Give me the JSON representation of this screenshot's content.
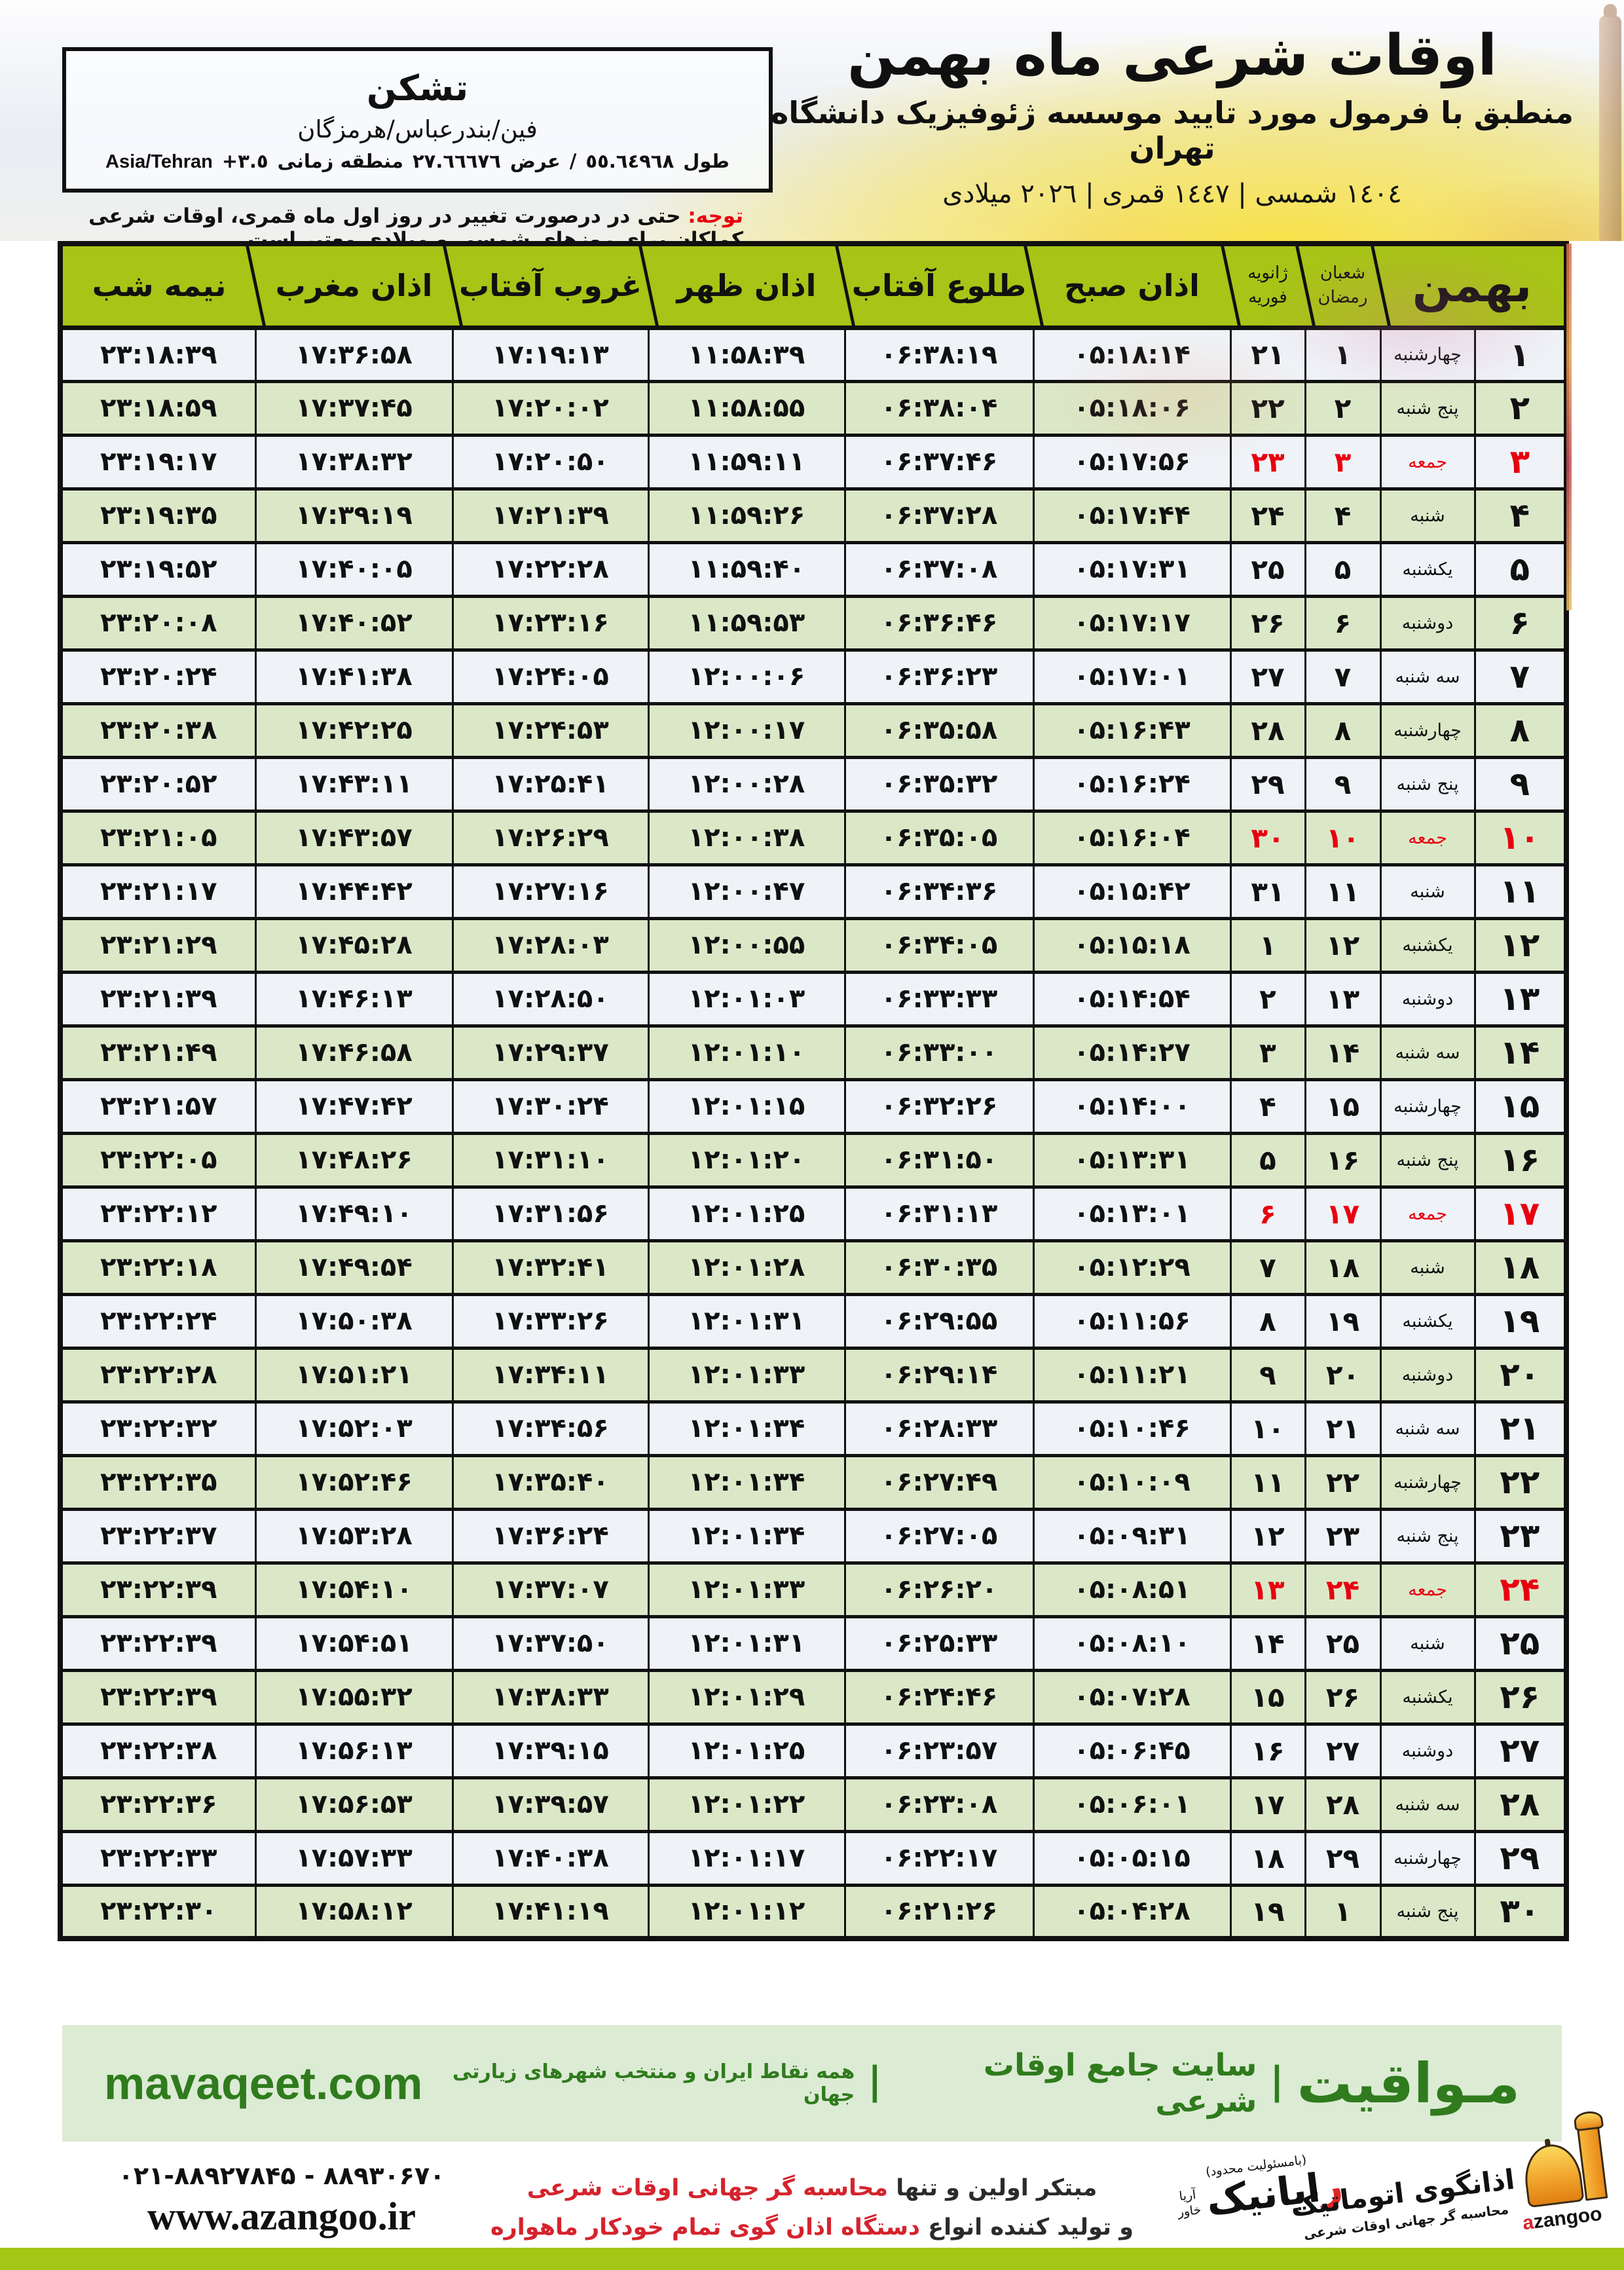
{
  "digit_style": "persian-indic",
  "header": {
    "title": "اوقات شرعی ماه بهمن",
    "subtitle": "منطبق با فرمول مورد تایید موسسه ژئوفیزیک دانشگاه تهران",
    "years_line": "١٤٠٤ شمسی | ١٤٤٧ قمری | ٢٠٢٦ میلادی"
  },
  "location_box": {
    "city": "تشکن",
    "region": "فین/بندرعباس/هرمزگان",
    "longitude_label": "طول",
    "longitude": "٥٥.٦٤٩٦٨",
    "slash": "/",
    "latitude_label": "عرض",
    "latitude": "٢٧.٦٦٦٧٦",
    "timezone_label": "منطقه زمانی",
    "timezone_offset": "+٣.٥",
    "timezone_name": "Asia/Tehran"
  },
  "notice": {
    "label": "توجه:",
    "text": " حتی در درصورت تغییر در روز اول ماه قمری، اوقات شرعی کماکان برای روزهای شمسی و میلادی معتبر است."
  },
  "table": {
    "month_header": "بهمن",
    "lunar_header_top": "شعبان",
    "lunar_header_bottom": "رمضان",
    "gregorian_header_top": "ژانویه",
    "gregorian_header_bottom": "فوریه",
    "time_headers": [
      "اذان صبح",
      "طلوع آفتاب",
      "اذان ظهر",
      "غروب آفتاب",
      "اذان مغرب",
      "نیمه شب"
    ],
    "rows": [
      {
        "day": 1,
        "weekday": "چهارشنبه",
        "lunar": 1,
        "greg": 21,
        "fajr": "05:18:14",
        "sunrise": "06:38:19",
        "dhuhr": "11:58:39",
        "sunset": "17:19:13",
        "maghrib": "17:36:58",
        "midnight": "23:18:39",
        "holiday": false
      },
      {
        "day": 2,
        "weekday": "پنج شنبه",
        "lunar": 2,
        "greg": 22,
        "fajr": "05:18:06",
        "sunrise": "06:38:04",
        "dhuhr": "11:58:55",
        "sunset": "17:20:02",
        "maghrib": "17:37:45",
        "midnight": "23:18:59",
        "holiday": false
      },
      {
        "day": 3,
        "weekday": "جمعه",
        "lunar": 3,
        "greg": 23,
        "fajr": "05:17:56",
        "sunrise": "06:37:46",
        "dhuhr": "11:59:11",
        "sunset": "17:20:50",
        "maghrib": "17:38:32",
        "midnight": "23:19:17",
        "holiday": true
      },
      {
        "day": 4,
        "weekday": "شنبه",
        "lunar": 4,
        "greg": 24,
        "fajr": "05:17:44",
        "sunrise": "06:37:28",
        "dhuhr": "11:59:26",
        "sunset": "17:21:39",
        "maghrib": "17:39:19",
        "midnight": "23:19:35",
        "holiday": false
      },
      {
        "day": 5,
        "weekday": "یکشنبه",
        "lunar": 5,
        "greg": 25,
        "fajr": "05:17:31",
        "sunrise": "06:37:08",
        "dhuhr": "11:59:40",
        "sunset": "17:22:28",
        "maghrib": "17:40:05",
        "midnight": "23:19:52",
        "holiday": false
      },
      {
        "day": 6,
        "weekday": "دوشنبه",
        "lunar": 6,
        "greg": 26,
        "fajr": "05:17:17",
        "sunrise": "06:36:46",
        "dhuhr": "11:59:53",
        "sunset": "17:23:16",
        "maghrib": "17:40:52",
        "midnight": "23:20:08",
        "holiday": false
      },
      {
        "day": 7,
        "weekday": "سه شنبه",
        "lunar": 7,
        "greg": 27,
        "fajr": "05:17:01",
        "sunrise": "06:36:23",
        "dhuhr": "12:00:06",
        "sunset": "17:24:05",
        "maghrib": "17:41:38",
        "midnight": "23:20:24",
        "holiday": false
      },
      {
        "day": 8,
        "weekday": "چهارشنبه",
        "lunar": 8,
        "greg": 28,
        "fajr": "05:16:43",
        "sunrise": "06:35:58",
        "dhuhr": "12:00:17",
        "sunset": "17:24:53",
        "maghrib": "17:42:25",
        "midnight": "23:20:38",
        "holiday": false
      },
      {
        "day": 9,
        "weekday": "پنج شنبه",
        "lunar": 9,
        "greg": 29,
        "fajr": "05:16:24",
        "sunrise": "06:35:32",
        "dhuhr": "12:00:28",
        "sunset": "17:25:41",
        "maghrib": "17:43:11",
        "midnight": "23:20:52",
        "holiday": false
      },
      {
        "day": 10,
        "weekday": "جمعه",
        "lunar": 10,
        "greg": 30,
        "fajr": "05:16:04",
        "sunrise": "06:35:05",
        "dhuhr": "12:00:38",
        "sunset": "17:26:29",
        "maghrib": "17:43:57",
        "midnight": "23:21:05",
        "holiday": true
      },
      {
        "day": 11,
        "weekday": "شنبه",
        "lunar": 11,
        "greg": 31,
        "fajr": "05:15:42",
        "sunrise": "06:34:36",
        "dhuhr": "12:00:47",
        "sunset": "17:27:16",
        "maghrib": "17:44:42",
        "midnight": "23:21:17",
        "holiday": false
      },
      {
        "day": 12,
        "weekday": "یکشنبه",
        "lunar": 12,
        "greg": 1,
        "fajr": "05:15:18",
        "sunrise": "06:34:05",
        "dhuhr": "12:00:55",
        "sunset": "17:28:03",
        "maghrib": "17:45:28",
        "midnight": "23:21:29",
        "holiday": false
      },
      {
        "day": 13,
        "weekday": "دوشنبه",
        "lunar": 13,
        "greg": 2,
        "fajr": "05:14:54",
        "sunrise": "06:33:33",
        "dhuhr": "12:01:03",
        "sunset": "17:28:50",
        "maghrib": "17:46:13",
        "midnight": "23:21:39",
        "holiday": false
      },
      {
        "day": 14,
        "weekday": "سه شنبه",
        "lunar": 14,
        "greg": 3,
        "fajr": "05:14:27",
        "sunrise": "06:33:00",
        "dhuhr": "12:01:10",
        "sunset": "17:29:37",
        "maghrib": "17:46:58",
        "midnight": "23:21:49",
        "holiday": false
      },
      {
        "day": 15,
        "weekday": "چهارشنبه",
        "lunar": 15,
        "greg": 4,
        "fajr": "05:14:00",
        "sunrise": "06:32:26",
        "dhuhr": "12:01:15",
        "sunset": "17:30:24",
        "maghrib": "17:47:42",
        "midnight": "23:21:57",
        "holiday": false
      },
      {
        "day": 16,
        "weekday": "پنج شنبه",
        "lunar": 16,
        "greg": 5,
        "fajr": "05:13:31",
        "sunrise": "06:31:50",
        "dhuhr": "12:01:20",
        "sunset": "17:31:10",
        "maghrib": "17:48:26",
        "midnight": "23:22:05",
        "holiday": false
      },
      {
        "day": 17,
        "weekday": "جمعه",
        "lunar": 17,
        "greg": 6,
        "fajr": "05:13:01",
        "sunrise": "06:31:13",
        "dhuhr": "12:01:25",
        "sunset": "17:31:56",
        "maghrib": "17:49:10",
        "midnight": "23:22:12",
        "holiday": true
      },
      {
        "day": 18,
        "weekday": "شنبه",
        "lunar": 18,
        "greg": 7,
        "fajr": "05:12:29",
        "sunrise": "06:30:35",
        "dhuhr": "12:01:28",
        "sunset": "17:32:41",
        "maghrib": "17:49:54",
        "midnight": "23:22:18",
        "holiday": false
      },
      {
        "day": 19,
        "weekday": "یکشنبه",
        "lunar": 19,
        "greg": 8,
        "fajr": "05:11:56",
        "sunrise": "06:29:55",
        "dhuhr": "12:01:31",
        "sunset": "17:33:26",
        "maghrib": "17:50:38",
        "midnight": "23:22:24",
        "holiday": false
      },
      {
        "day": 20,
        "weekday": "دوشنبه",
        "lunar": 20,
        "greg": 9,
        "fajr": "05:11:21",
        "sunrise": "06:29:14",
        "dhuhr": "12:01:33",
        "sunset": "17:34:11",
        "maghrib": "17:51:21",
        "midnight": "23:22:28",
        "holiday": false
      },
      {
        "day": 21,
        "weekday": "سه شنبه",
        "lunar": 21,
        "greg": 10,
        "fajr": "05:10:46",
        "sunrise": "06:28:33",
        "dhuhr": "12:01:34",
        "sunset": "17:34:56",
        "maghrib": "17:52:03",
        "midnight": "23:22:32",
        "holiday": false
      },
      {
        "day": 22,
        "weekday": "چهارشنبه",
        "lunar": 22,
        "greg": 11,
        "fajr": "05:10:09",
        "sunrise": "06:27:49",
        "dhuhr": "12:01:34",
        "sunset": "17:35:40",
        "maghrib": "17:52:46",
        "midnight": "23:22:35",
        "holiday": false
      },
      {
        "day": 23,
        "weekday": "پنج شنبه",
        "lunar": 23,
        "greg": 12,
        "fajr": "05:09:31",
        "sunrise": "06:27:05",
        "dhuhr": "12:01:34",
        "sunset": "17:36:24",
        "maghrib": "17:53:28",
        "midnight": "23:22:37",
        "holiday": false
      },
      {
        "day": 24,
        "weekday": "جمعه",
        "lunar": 24,
        "greg": 13,
        "fajr": "05:08:51",
        "sunrise": "06:26:20",
        "dhuhr": "12:01:33",
        "sunset": "17:37:07",
        "maghrib": "17:54:10",
        "midnight": "23:22:39",
        "holiday": true
      },
      {
        "day": 25,
        "weekday": "شنبه",
        "lunar": 25,
        "greg": 14,
        "fajr": "05:08:10",
        "sunrise": "06:25:33",
        "dhuhr": "12:01:31",
        "sunset": "17:37:50",
        "maghrib": "17:54:51",
        "midnight": "23:22:39",
        "holiday": false
      },
      {
        "day": 26,
        "weekday": "یکشنبه",
        "lunar": 26,
        "greg": 15,
        "fajr": "05:07:28",
        "sunrise": "06:24:46",
        "dhuhr": "12:01:29",
        "sunset": "17:38:33",
        "maghrib": "17:55:32",
        "midnight": "23:22:39",
        "holiday": false
      },
      {
        "day": 27,
        "weekday": "دوشنبه",
        "lunar": 27,
        "greg": 16,
        "fajr": "05:06:45",
        "sunrise": "06:23:57",
        "dhuhr": "12:01:25",
        "sunset": "17:39:15",
        "maghrib": "17:56:13",
        "midnight": "23:22:38",
        "holiday": false
      },
      {
        "day": 28,
        "weekday": "سه شنبه",
        "lunar": 28,
        "greg": 17,
        "fajr": "05:06:01",
        "sunrise": "06:23:08",
        "dhuhr": "12:01:22",
        "sunset": "17:39:57",
        "maghrib": "17:56:53",
        "midnight": "23:22:36",
        "holiday": false
      },
      {
        "day": 29,
        "weekday": "چهارشنبه",
        "lunar": 29,
        "greg": 18,
        "fajr": "05:05:15",
        "sunrise": "06:22:17",
        "dhuhr": "12:01:17",
        "sunset": "17:40:38",
        "maghrib": "17:57:33",
        "midnight": "23:22:33",
        "holiday": false
      },
      {
        "day": 30,
        "weekday": "پنج شنبه",
        "lunar": 1,
        "greg": 19,
        "fajr": "05:04:28",
        "sunrise": "06:21:26",
        "dhuhr": "12:01:12",
        "sunset": "17:41:19",
        "maghrib": "17:58:12",
        "midnight": "23:22:30",
        "holiday": false
      }
    ]
  },
  "mavaqeet_band": {
    "site_domain": "mavaqeet.com",
    "brand_fa": "مـواقیت",
    "separator": "|",
    "site_desc": "سایت جامع اوقات شرعی",
    "coverage": "همه نقاط ایران و منتخب شهرهای زیارتی جهان"
  },
  "contact": {
    "phones": "۰۲۱-۸۸۹۲۷۸۴۵ - ۸۸۹۳۰۶۷۰",
    "website": "www.azangoo.ir"
  },
  "promo": {
    "line1_black": "مبتکر اولین و تنها ",
    "line1_red": "محاسبه گر جهانی اوقات شرعی",
    "line2_black": "و تولید کننده انواع ",
    "line2_red": "دستگاه اذان گوی تمام خودکار ماهواره ای"
  },
  "rayanik": {
    "note": "(بامسئولیت محدود)",
    "name_first": "ر",
    "name_rest": "ایانیک",
    "side_top": "آریا",
    "side_bottom": "خاور"
  },
  "azangoo": {
    "name_fa": "اذانگوی اتوماتیک",
    "tagline": "محاسبه گر جهانی اوقات شرعی",
    "latin_a": "a",
    "latin_rest": "zangoo"
  },
  "colors": {
    "header_green": "#a8c416",
    "row_even_green": "#dbe8c8",
    "row_odd_white": "#eff3f8",
    "friday_red": "#e8000f",
    "footer_band_bg": "#dcebd4",
    "footer_text_green": "#2f7b1d",
    "bottom_band_green": "#a4c614",
    "promo_red": "#d5232d"
  }
}
